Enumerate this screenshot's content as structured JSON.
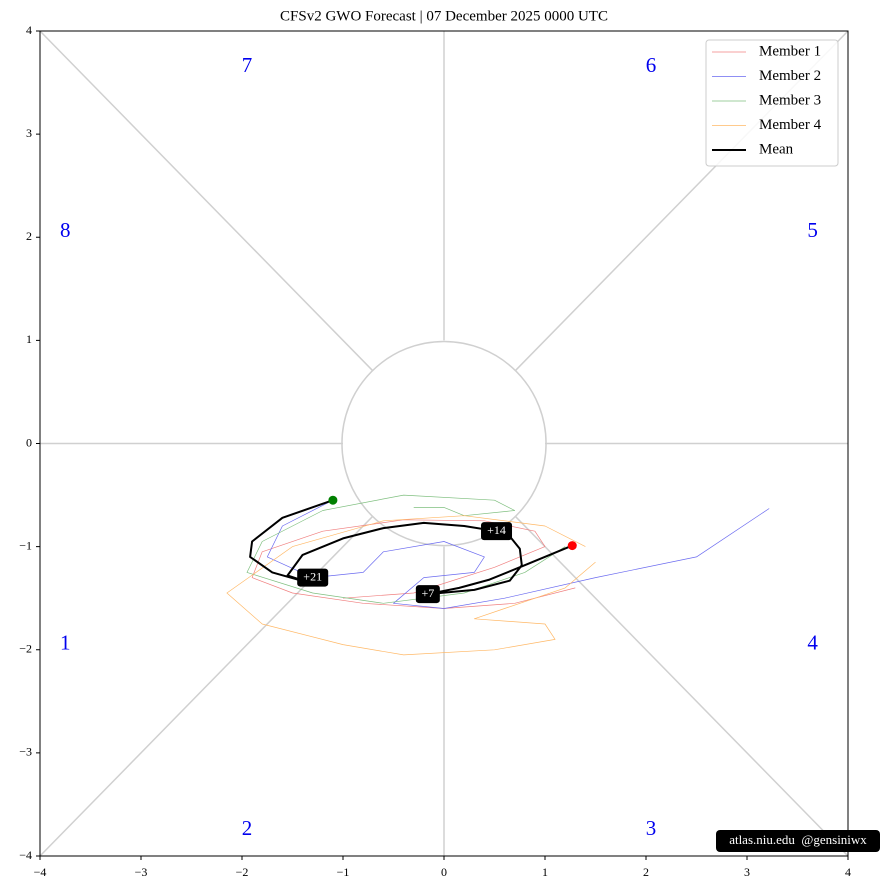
{
  "chart_data": {
    "type": "phase",
    "title": "CFSv2 GWO Forecast  |  07  December  2025 0000 UTC",
    "xlim": [
      -4,
      4
    ],
    "ylim": [
      -4,
      4
    ],
    "xticks": [
      {
        "value": -4,
        "label": "−4"
      },
      {
        "value": -3,
        "label": "−3"
      },
      {
        "value": -2,
        "label": "−2"
      },
      {
        "value": -1,
        "label": "−1"
      },
      0,
      1,
      2,
      3,
      4
    ],
    "yticks": [
      {
        "value": -4,
        "label": "−4"
      },
      {
        "value": -3,
        "label": "−3"
      },
      {
        "value": -2,
        "label": "−2"
      },
      {
        "value": -1,
        "label": "−1"
      },
      0,
      1,
      2,
      3,
      4
    ],
    "legend": "upper right",
    "series": [
      {
        "name": "Member 1",
        "color": "#f08080",
        "width": 0.7,
        "x": [
          1.3,
          0.7,
          0,
          -0.8,
          -1.5,
          -1.9,
          -1.8,
          -1.2,
          -0.4,
          0.4,
          0.9,
          1.0,
          0.5,
          -0.3,
          -1.0
        ],
        "y": [
          -1.4,
          -1.55,
          -1.6,
          -1.55,
          -1.45,
          -1.3,
          -1.05,
          -0.85,
          -0.74,
          -0.75,
          -0.85,
          -1.0,
          -1.2,
          -1.45,
          -1.5
        ]
      },
      {
        "name": "Member 2",
        "color": "#6a6af0",
        "width": 0.7,
        "x": [
          3.22,
          2.5,
          1.5,
          0.6,
          0,
          -0.5,
          -0.2,
          0.3,
          0.4,
          0,
          -0.6,
          -0.8,
          -1.3,
          -1.75,
          -1.6,
          -1.1
        ],
        "y": [
          -0.63,
          -1.1,
          -1.3,
          -1.5,
          -1.6,
          -1.55,
          -1.3,
          -1.25,
          -1.1,
          -0.95,
          -1.05,
          -1.25,
          -1.3,
          -1.1,
          -0.8,
          -0.55
        ]
      },
      {
        "name": "Member 3",
        "color": "#7fbf7f",
        "width": 0.7,
        "x": [
          1.2,
          0.8,
          0.2,
          -0.6,
          -1.3,
          -1.95,
          -1.8,
          -1.2,
          -0.4,
          0.5,
          0.7,
          0.2,
          0,
          -0.3
        ],
        "y": [
          -1.0,
          -1.25,
          -1.45,
          -1.55,
          -1.45,
          -1.25,
          -0.95,
          -0.65,
          -0.5,
          -0.55,
          -0.65,
          -0.7,
          -0.62,
          -0.62
        ]
      },
      {
        "name": "Member 4",
        "color": "#ffb866",
        "width": 0.7,
        "x": [
          1.4,
          1.0,
          0.2,
          -0.6,
          -1.5,
          -2.15,
          -1.8,
          -1.0,
          -0.4,
          0.5,
          1.1,
          1.0,
          0.3,
          0.6,
          1.2,
          1.5
        ],
        "y": [
          -1.0,
          -0.8,
          -0.7,
          -0.75,
          -1.0,
          -1.45,
          -1.75,
          -1.95,
          -2.05,
          -2.0,
          -1.9,
          -1.75,
          -1.7,
          -1.6,
          -1.4,
          -1.15
        ]
      },
      {
        "name": "Mean",
        "color": "#000000",
        "width": 2,
        "x": [
          1.27,
          0.8,
          0.45,
          0.15,
          -0.16,
          0.3,
          0.65,
          0.77,
          0.75,
          0.65,
          0.52,
          0.2,
          -0.2,
          -0.6,
          -1.0,
          -1.4,
          -1.55,
          -1.3,
          -1.7,
          -1.92,
          -1.9,
          -1.6,
          -1.1
        ],
        "y": [
          -0.99,
          -1.18,
          -1.32,
          -1.4,
          -1.46,
          -1.42,
          -1.33,
          -1.18,
          -1.02,
          -0.9,
          -0.85,
          -0.8,
          -0.77,
          -0.82,
          -0.92,
          -1.08,
          -1.28,
          -1.36,
          -1.25,
          -1.1,
          -0.95,
          -0.72,
          -0.55
        ]
      }
    ],
    "start_color": "#ff0000",
    "end_color": "#008000",
    "annotations": [
      {
        "text": "+7",
        "x": -0.16,
        "y": -1.46
      },
      {
        "text": "+14",
        "x": 0.52,
        "y": -0.85
      },
      {
        "text": "+21",
        "x": -1.3,
        "y": -1.3
      }
    ],
    "phase_labels": [
      {
        "text": "1",
        "x": -3.75,
        "y": -1.95
      },
      {
        "text": "2",
        "x": -1.95,
        "y": -3.75
      },
      {
        "text": "3",
        "x": 2.05,
        "y": -3.75
      },
      {
        "text": "4",
        "x": 3.65,
        "y": -1.95
      },
      {
        "text": "5",
        "x": 3.65,
        "y": 2.05
      },
      {
        "text": "6",
        "x": 2.05,
        "y": 3.65
      },
      {
        "text": "7",
        "x": -1.95,
        "y": 3.65
      },
      {
        "text": "8",
        "x": -3.75,
        "y": 2.05
      }
    ],
    "watermark": "atlas.niu.edu  @gensiniwx"
  }
}
